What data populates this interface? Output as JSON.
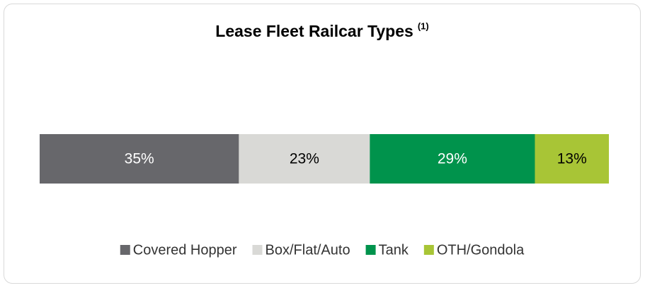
{
  "chart_data": {
    "type": "bar",
    "orientation": "horizontal",
    "stacked": true,
    "title": "Lease Fleet Railcar Types",
    "title_note": "(1)",
    "xlim": [
      0,
      100
    ],
    "series": [
      {
        "name": "Covered Hopper",
        "color": "#67676b",
        "values": [
          35
        ],
        "value_labels": [
          "35%"
        ]
      },
      {
        "name": "Box/Flat/Auto",
        "color": "#d9d9d6",
        "values": [
          23
        ],
        "value_labels": [
          "23%"
        ]
      },
      {
        "name": "Tank",
        "color": "#00934c",
        "values": [
          29
        ],
        "value_labels": [
          "29%"
        ]
      },
      {
        "name": "OTH/Gondola",
        "color": "#a8c536",
        "values": [
          13
        ],
        "value_labels": [
          "13%"
        ]
      }
    ],
    "legend": "bottom"
  }
}
